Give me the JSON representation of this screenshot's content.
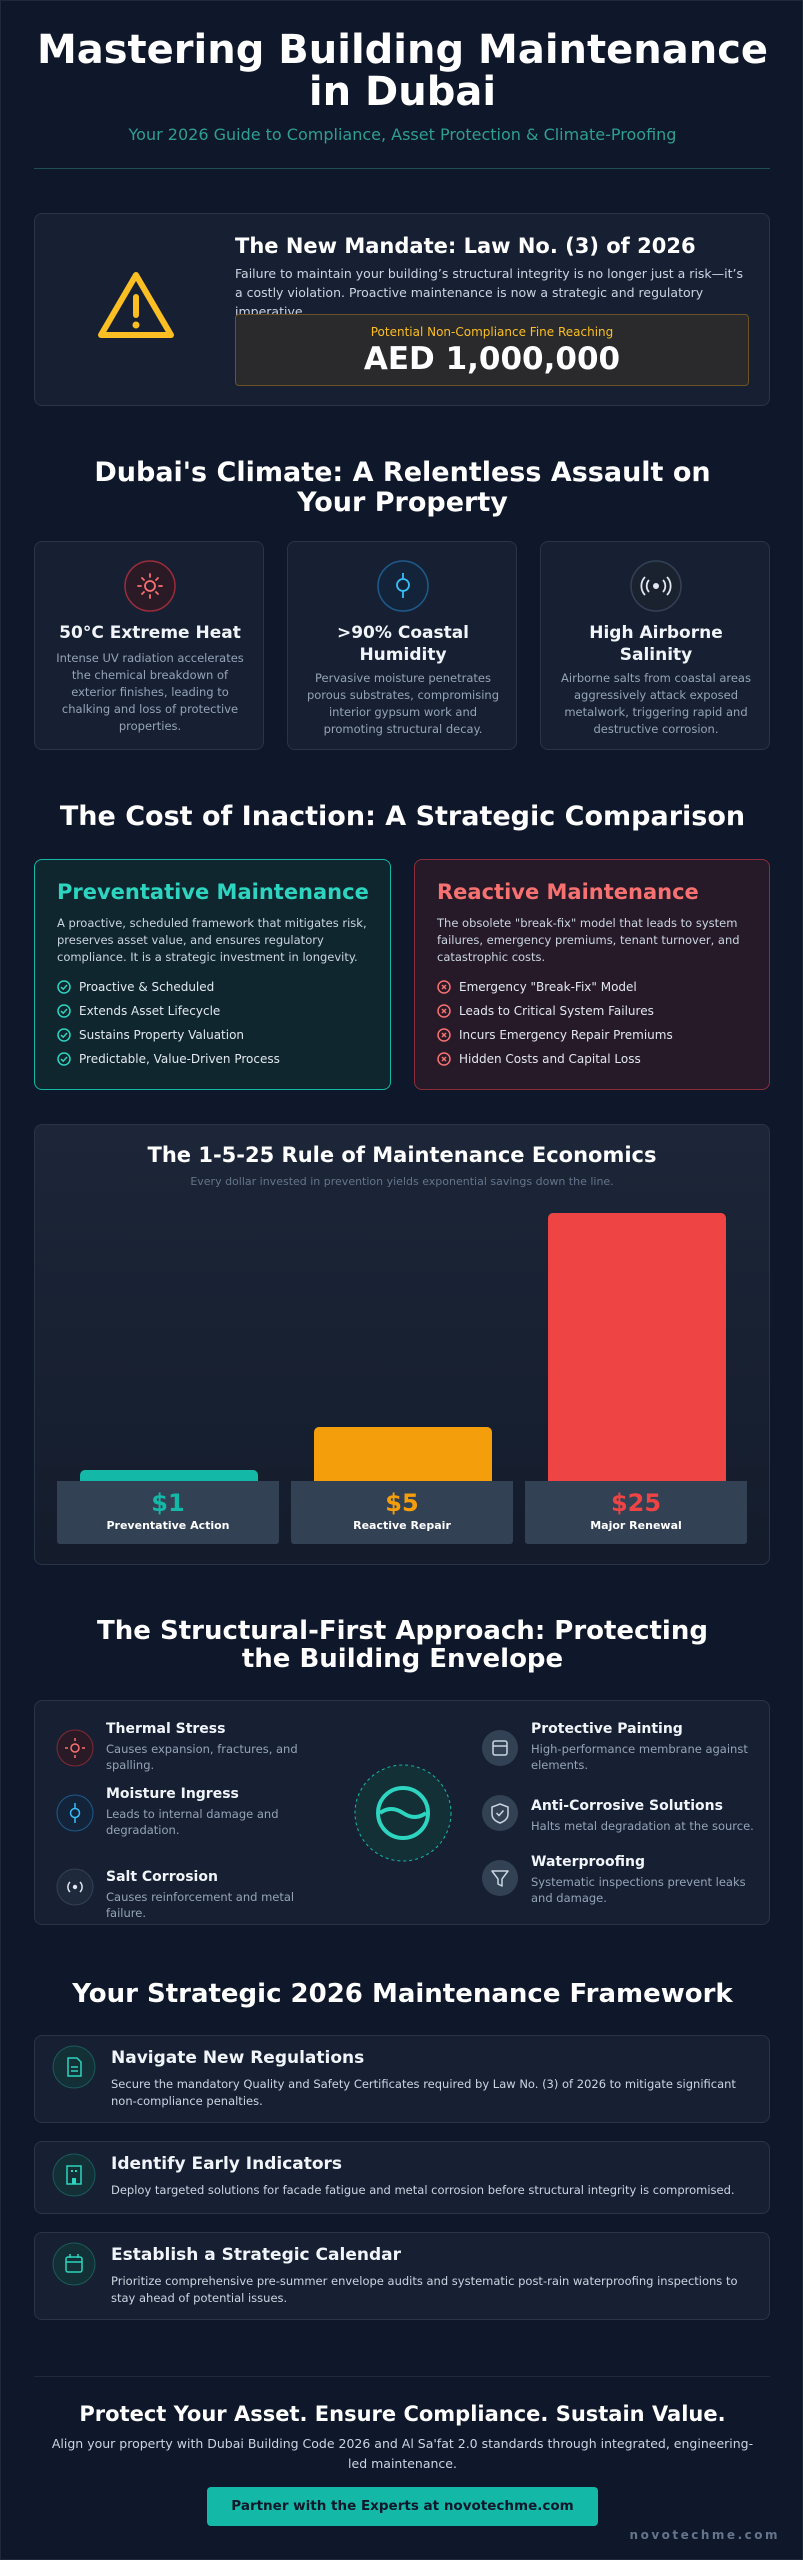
{
  "header": {
    "title": "Mastering Building Maintenance in Dubai",
    "subtitle": "Your 2026 Guide to Compliance, Asset Protection & Climate-Proofing"
  },
  "mandate": {
    "heading": "The New Mandate: Law No. (3) of 2026",
    "body": "Failure to maintain your building’s structural integrity is no longer just a risk—it’s a costly violation. Proactive maintenance is now a strategic and regulatory imperative.",
    "fine_label": "Potential Non-Compliance Fine Reaching",
    "fine_amount": "AED 1,000,000"
  },
  "climate": {
    "heading": "Dubai's Climate: A Relentless Assault on Your Property",
    "cards": [
      {
        "title": "50°C Extreme Heat",
        "text": "Intense UV radiation accelerates the chemical breakdown of exterior finishes, leading to chalking and loss of protective properties."
      },
      {
        "title": ">90% Coastal Humidity",
        "text": "Pervasive moisture penetrates porous substrates, compromising interior gypsum work and promoting structural decay."
      },
      {
        "title": "High Airborne Salinity",
        "text": "Airborne salts from coastal areas aggressively attack exposed metalwork, triggering rapid and destructive corrosion."
      }
    ]
  },
  "comparison": {
    "heading": "The Cost of Inaction: A Strategic Comparison",
    "preventative": {
      "title": "Preventative Maintenance",
      "text": "A proactive, scheduled framework that mitigates risk, preserves asset value, and ensures regulatory compliance. It is a strategic investment in longevity.",
      "items": [
        "Proactive & Scheduled",
        "Extends Asset Lifecycle",
        "Sustains Property Valuation",
        "Predictable, Value-Driven Process"
      ]
    },
    "reactive": {
      "title": "Reactive Maintenance",
      "text": "The obsolete \"break-fix\" model that leads to system failures, emergency premiums, tenant turnover, and catastrophic costs.",
      "items": [
        "Emergency \"Break-Fix\" Model",
        "Leads to Critical System Failures",
        "Incurs Emergency Repair Premiums",
        "Hidden Costs and Capital Loss"
      ]
    }
  },
  "chart_data": {
    "type": "bar",
    "title": "The 1-5-25 Rule of Maintenance Economics",
    "subtitle": "Every dollar invested in prevention yields exponential savings down the line.",
    "categories": [
      "Preventative Action",
      "Reactive Repair",
      "Major Renewal"
    ],
    "values": [
      1,
      5,
      25
    ],
    "value_labels": [
      "$1",
      "$5",
      "$25"
    ],
    "colors": [
      "#14b8a6",
      "#f59e0b",
      "#ef4444"
    ]
  },
  "structural": {
    "heading": "The Structural-First Approach: Protecting the Building Envelope",
    "threats": [
      {
        "title": "Thermal Stress",
        "text": "Causes expansion, fractures, and spalling."
      },
      {
        "title": "Moisture Ingress",
        "text": "Leads to internal damage and degradation."
      },
      {
        "title": "Salt Corrosion",
        "text": "Causes reinforcement and metal failure."
      }
    ],
    "solutions": [
      {
        "title": "Protective Painting",
        "text": "High-performance membrane against elements."
      },
      {
        "title": "Anti-Corrosive Solutions",
        "text": "Halts metal degradation at the source."
      },
      {
        "title": "Waterproofing",
        "text": "Systematic inspections prevent leaks and damage."
      }
    ]
  },
  "framework": {
    "heading": "Your Strategic 2026 Maintenance Framework",
    "steps": [
      {
        "title": "Navigate New Regulations",
        "text": "Secure the mandatory Quality and Safety Certificates required by Law No. (3) of 2026 to mitigate significant non-compliance penalties."
      },
      {
        "title": "Identify Early Indicators",
        "text": "Deploy targeted solutions for facade fatigue and metal corrosion before structural integrity is compromised."
      },
      {
        "title": "Establish a Strategic Calendar",
        "text": "Prioritize comprehensive pre-summer envelope audits and systematic post-rain waterproofing inspections to stay ahead of potential issues."
      }
    ]
  },
  "footer": {
    "heading": "Protect Your Asset. Ensure Compliance. Sustain Value.",
    "text": "Align your property with Dubai Building Code 2026 and Al Sa'fat 2.0 standards through integrated, engineering-led maintenance.",
    "button": "Partner with the Experts at novotechme.com",
    "url": "novotechme.com"
  }
}
